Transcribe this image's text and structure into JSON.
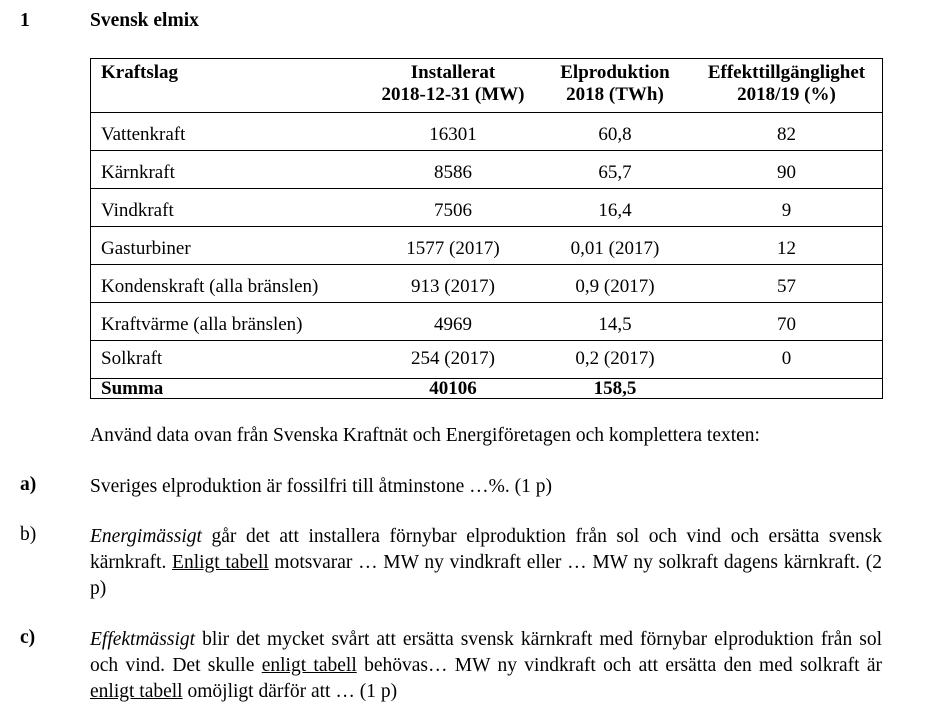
{
  "section": {
    "number": "1",
    "title": "Svensk elmix"
  },
  "table": {
    "headers": [
      [
        "Kraftslag"
      ],
      [
        "Installerat",
        "2018-12-31 (MW)"
      ],
      [
        "Elproduktion",
        "2018 (TWh)"
      ],
      [
        "Effekttillgänglighet",
        "2018/19 (%)"
      ]
    ],
    "rows": [
      [
        "Vattenkraft",
        "16301",
        "60,8",
        "82"
      ],
      [
        "Kärnkraft",
        "8586",
        "65,7",
        "90"
      ],
      [
        "Vindkraft",
        "7506",
        "16,4",
        "9"
      ],
      [
        "Gasturbiner",
        "1577 (2017)",
        "0,01 (2017)",
        "12"
      ],
      [
        "Kondenskraft (alla bränslen)",
        "913 (2017)",
        "0,9 (2017)",
        "57"
      ],
      [
        "Kraftvärme (alla bränslen)",
        "4969",
        "14,5",
        "70"
      ],
      [
        "Solkraft",
        "254 (2017)",
        "0,2 (2017)",
        "0"
      ]
    ],
    "sum": [
      "Summa",
      "40106",
      "158,5",
      ""
    ]
  },
  "intro": "Använd data ovan från Svenska Kraftnät och Energiföretagen och komplettera texten:",
  "questions": {
    "a": {
      "label": "a)",
      "text": "Sveriges elproduktion är fossilfri till åtminstone …%. (1 p)"
    },
    "b": {
      "label": "b)",
      "em": "Energimässigt",
      "t1": " går det att installera förnybar elproduktion från sol och vind och ersätta svensk kärnkraft. ",
      "u1": "Enligt tabell",
      "t2": " motsvarar … MW ny vindkraft eller … MW ny solkraft dagens kärnkraft. (2 p)"
    },
    "c": {
      "label": "c)",
      "em": "Effektmässigt",
      "t1": " blir det mycket svårt att ersätta svensk kärnkraft med förnybar elproduktion från sol och vind. Det skulle ",
      "u1": "enligt tabell",
      "t2": " behövas… MW ny vindkraft och att ersätta den med solkraft är ",
      "u2": "enligt tabell",
      "t3": " omöjligt därför att … (1 p)"
    }
  }
}
